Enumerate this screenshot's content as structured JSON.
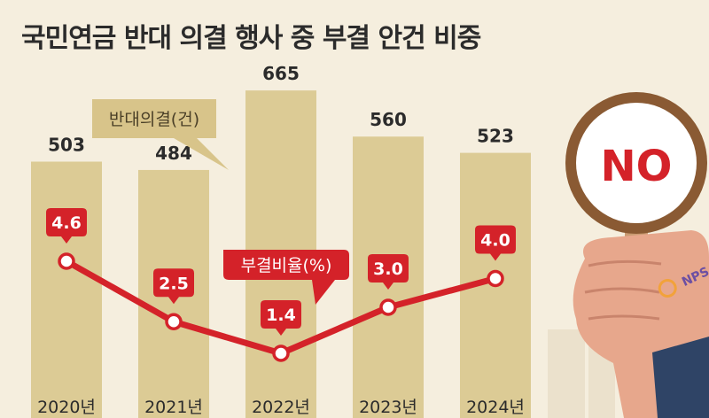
{
  "title": "국민연금 반대 의결 행사 중 부결 안건 비중",
  "colors": {
    "background": "#f5eede",
    "bar": "#dccb95",
    "line": "#d42229",
    "label_box": "#d42229",
    "legend_box": "#d8c48a"
  },
  "illustration": {
    "sign_text": "NO",
    "logo_text": "NPS"
  },
  "chart_data": {
    "type": "bar",
    "categories": [
      "2020년",
      "2021년",
      "2022년",
      "2023년",
      "2024년"
    ],
    "series": [
      {
        "name": "반대의결(건)",
        "type": "bar",
        "values": [
          503,
          484,
          665,
          560,
          523
        ]
      },
      {
        "name": "부결비율(%)",
        "type": "line",
        "values": [
          4.6,
          2.5,
          1.4,
          3.0,
          4.0
        ],
        "labels": [
          "4.6",
          "2.5",
          "1.4",
          "3.0",
          "4.0"
        ]
      }
    ],
    "legend_placement": "inline callouts",
    "grid": false
  }
}
